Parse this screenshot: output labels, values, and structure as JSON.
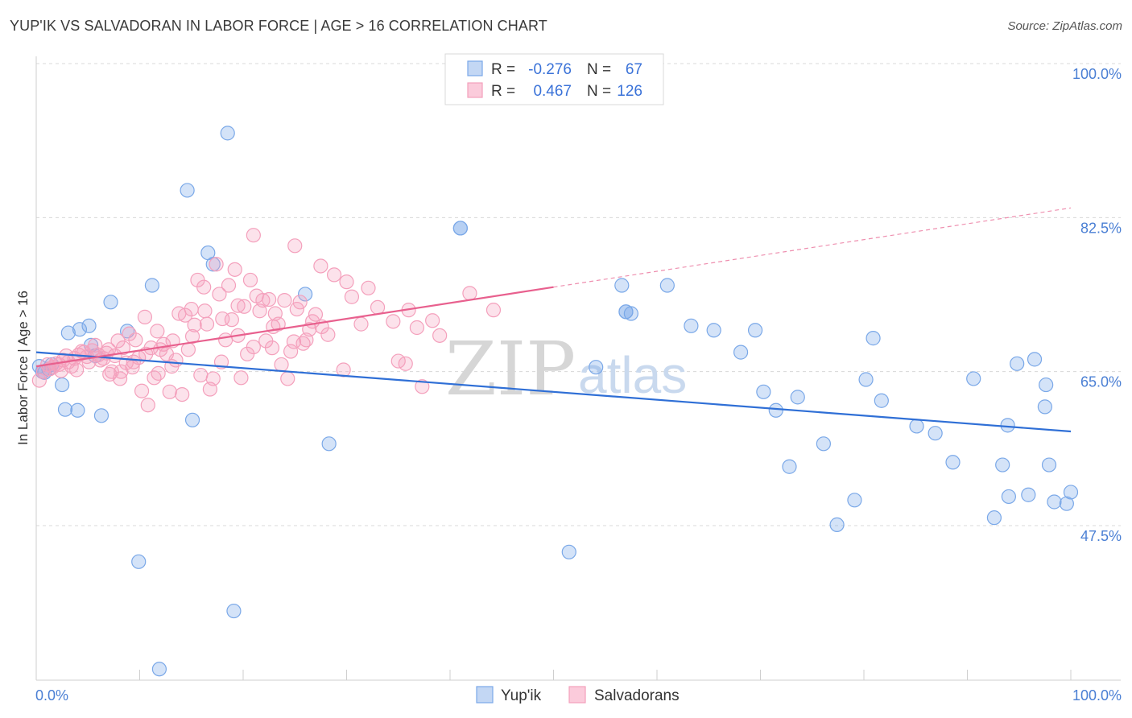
{
  "title": "YUP'IK VS SALVADORAN IN LABOR FORCE | AGE > 16 CORRELATION CHART",
  "source": "Source: ZipAtlas.com",
  "watermark": {
    "zip": "ZIP",
    "atlas": "atlas"
  },
  "chart_data": {
    "type": "scatter",
    "title": "YUP'IK VS SALVADORAN IN LABOR FORCE | AGE > 16 CORRELATION CHART",
    "xlabel": "",
    "ylabel": "In Labor Force | Age > 16",
    "xlim": [
      0,
      100
    ],
    "ylim": [
      31,
      102
    ],
    "x_tick_labels": [
      {
        "value": 0,
        "label": "0.0%"
      },
      {
        "value": 100,
        "label": "100.0%"
      }
    ],
    "y_ticks": [
      {
        "value": 100.0,
        "label": "100.0%"
      },
      {
        "value": 82.5,
        "label": "82.5%"
      },
      {
        "value": 65.0,
        "label": "65.0%"
      },
      {
        "value": 47.5,
        "label": "47.5%"
      }
    ],
    "grid": true,
    "legend_position": "top-center",
    "series": [
      {
        "name": "Yup'ik",
        "color": "#7aa8e8",
        "line_color": "#2f6fd6",
        "R": "-0.276",
        "N": "67",
        "trend": {
          "x0": 0,
          "y0": 67.2,
          "x1": 100,
          "y1": 58.2,
          "dashed_from": null
        },
        "points": [
          [
            0.3,
            65.6
          ],
          [
            0.6,
            65.0
          ],
          [
            0.8,
            64.9
          ],
          [
            1.2,
            65.3
          ],
          [
            1.5,
            65.8
          ],
          [
            2.5,
            63.5
          ],
          [
            2.8,
            60.7
          ],
          [
            3.1,
            69.4
          ],
          [
            4.0,
            60.6
          ],
          [
            4.2,
            69.8
          ],
          [
            5.1,
            70.2
          ],
          [
            5.3,
            68.0
          ],
          [
            5.7,
            66.8
          ],
          [
            6.3,
            60.0
          ],
          [
            7.2,
            72.9
          ],
          [
            8.8,
            69.6
          ],
          [
            9.9,
            43.4
          ],
          [
            11.2,
            74.8
          ],
          [
            11.9,
            31.2
          ],
          [
            14.6,
            85.6
          ],
          [
            15.1,
            59.5
          ],
          [
            16.6,
            78.5
          ],
          [
            17.1,
            77.2
          ],
          [
            18.5,
            92.1
          ],
          [
            19.1,
            37.8
          ],
          [
            26.0,
            73.8
          ],
          [
            28.3,
            56.8
          ],
          [
            41.0,
            81.3
          ],
          [
            51.5,
            44.5
          ],
          [
            54.1,
            65.5
          ],
          [
            56.6,
            74.8
          ],
          [
            57.0,
            71.8
          ],
          [
            57.5,
            71.6
          ],
          [
            61.0,
            74.8
          ],
          [
            63.3,
            70.2
          ],
          [
            65.5,
            69.7
          ],
          [
            68.1,
            67.2
          ],
          [
            69.5,
            69.7
          ],
          [
            70.3,
            62.7
          ],
          [
            71.5,
            60.6
          ],
          [
            72.8,
            54.2
          ],
          [
            73.6,
            62.1
          ],
          [
            76.1,
            56.8
          ],
          [
            77.4,
            47.6
          ],
          [
            79.1,
            50.4
          ],
          [
            80.2,
            64.1
          ],
          [
            80.9,
            68.8
          ],
          [
            81.7,
            61.7
          ],
          [
            85.1,
            58.8
          ],
          [
            86.9,
            58.0
          ],
          [
            88.6,
            54.7
          ],
          [
            90.6,
            64.2
          ],
          [
            92.6,
            48.4
          ],
          [
            93.4,
            54.4
          ],
          [
            93.9,
            58.9
          ],
          [
            94.0,
            50.8
          ],
          [
            94.8,
            65.9
          ],
          [
            95.9,
            51.0
          ],
          [
            96.5,
            66.4
          ],
          [
            97.5,
            61.0
          ],
          [
            97.6,
            63.5
          ],
          [
            97.9,
            54.4
          ],
          [
            98.4,
            50.2
          ],
          [
            99.6,
            50.0
          ],
          [
            100.0,
            51.3
          ],
          [
            41.0,
            81.3
          ],
          [
            57.0,
            71.8
          ]
        ]
      },
      {
        "name": "Salvadorans",
        "color": "#f4a0bc",
        "line_color": "#e8608e",
        "R": "0.467",
        "N": "126",
        "trend": {
          "x0": 0,
          "y0": 65.6,
          "x1": 100,
          "y1": 83.6,
          "dashed_from": 50
        },
        "points": [
          [
            0.3,
            64.0
          ],
          [
            0.7,
            65.0
          ],
          [
            1.1,
            65.8
          ],
          [
            1.3,
            65.3
          ],
          [
            1.6,
            65.5
          ],
          [
            1.9,
            65.9
          ],
          [
            2.2,
            65.8
          ],
          [
            2.4,
            65.1
          ],
          [
            2.6,
            66.3
          ],
          [
            2.9,
            66.8
          ],
          [
            3.1,
            66.1
          ],
          [
            3.4,
            65.6
          ],
          [
            3.7,
            66.5
          ],
          [
            3.9,
            65.2
          ],
          [
            4.1,
            66.9
          ],
          [
            4.4,
            67.3
          ],
          [
            4.6,
            67.2
          ],
          [
            4.9,
            66.7
          ],
          [
            5.1,
            66.1
          ],
          [
            5.4,
            67.4
          ],
          [
            5.7,
            68.0
          ],
          [
            6.0,
            66.9
          ],
          [
            6.2,
            66.3
          ],
          [
            6.5,
            66.5
          ],
          [
            6.8,
            67.1
          ],
          [
            7.0,
            67.5
          ],
          [
            7.3,
            65.0
          ],
          [
            7.6,
            66.8
          ],
          [
            7.9,
            68.5
          ],
          [
            8.1,
            64.2
          ],
          [
            8.4,
            67.7
          ],
          [
            8.7,
            66.0
          ],
          [
            9.0,
            69.3
          ],
          [
            9.3,
            65.5
          ],
          [
            9.6,
            68.6
          ],
          [
            9.9,
            66.6
          ],
          [
            10.2,
            62.8
          ],
          [
            10.5,
            71.2
          ],
          [
            10.8,
            61.2
          ],
          [
            11.1,
            67.7
          ],
          [
            11.4,
            64.3
          ],
          [
            11.7,
            69.6
          ],
          [
            12.0,
            67.5
          ],
          [
            12.3,
            68.1
          ],
          [
            12.6,
            67.0
          ],
          [
            12.9,
            62.7
          ],
          [
            13.2,
            68.5
          ],
          [
            13.5,
            66.3
          ],
          [
            13.8,
            71.6
          ],
          [
            14.1,
            62.4
          ],
          [
            14.4,
            71.4
          ],
          [
            14.7,
            67.5
          ],
          [
            15.0,
            72.1
          ],
          [
            15.3,
            70.3
          ],
          [
            15.6,
            75.4
          ],
          [
            15.9,
            64.6
          ],
          [
            16.2,
            74.6
          ],
          [
            16.5,
            70.4
          ],
          [
            16.8,
            63.0
          ],
          [
            17.1,
            64.2
          ],
          [
            17.4,
            77.2
          ],
          [
            17.7,
            73.8
          ],
          [
            18.0,
            71.0
          ],
          [
            18.3,
            68.6
          ],
          [
            18.6,
            74.8
          ],
          [
            18.9,
            70.9
          ],
          [
            19.2,
            76.6
          ],
          [
            19.5,
            72.5
          ],
          [
            19.8,
            64.3
          ],
          [
            20.1,
            72.4
          ],
          [
            20.4,
            67.0
          ],
          [
            20.7,
            75.4
          ],
          [
            21.0,
            67.8
          ],
          [
            21.3,
            73.6
          ],
          [
            21.6,
            71.9
          ],
          [
            21.9,
            73.1
          ],
          [
            22.2,
            68.5
          ],
          [
            22.5,
            73.2
          ],
          [
            22.8,
            67.7
          ],
          [
            23.1,
            71.6
          ],
          [
            23.4,
            70.4
          ],
          [
            23.7,
            65.8
          ],
          [
            24.0,
            73.1
          ],
          [
            24.3,
            64.2
          ],
          [
            24.6,
            67.3
          ],
          [
            24.9,
            68.4
          ],
          [
            25.2,
            72.1
          ],
          [
            25.5,
            72.9
          ],
          [
            25.8,
            68.2
          ],
          [
            26.1,
            68.6
          ],
          [
            26.4,
            69.8
          ],
          [
            26.7,
            70.7
          ],
          [
            27.0,
            71.5
          ],
          [
            27.6,
            70.1
          ],
          [
            28.2,
            69.2
          ],
          [
            28.8,
            76.0
          ],
          [
            29.7,
            65.2
          ],
          [
            30.5,
            73.5
          ],
          [
            31.4,
            70.4
          ],
          [
            32.1,
            74.5
          ],
          [
            33.0,
            72.3
          ],
          [
            35.0,
            66.2
          ],
          [
            36.0,
            72.0
          ],
          [
            37.3,
            63.3
          ],
          [
            38.3,
            70.8
          ],
          [
            39.0,
            69.1
          ],
          [
            41.9,
            73.9
          ],
          [
            44.2,
            72.0
          ],
          [
            35.7,
            65.9
          ],
          [
            25.0,
            79.3
          ],
          [
            27.5,
            77.0
          ],
          [
            21.0,
            80.5
          ],
          [
            30.0,
            75.2
          ],
          [
            34.5,
            70.7
          ],
          [
            36.8,
            70.0
          ],
          [
            22.9,
            70.1
          ],
          [
            19.5,
            69.1
          ],
          [
            17.9,
            66.1
          ],
          [
            16.3,
            71.9
          ],
          [
            15.1,
            69.0
          ],
          [
            13.1,
            65.6
          ],
          [
            11.8,
            64.8
          ],
          [
            10.6,
            67.0
          ],
          [
            9.4,
            66.1
          ],
          [
            8.2,
            65.0
          ],
          [
            7.1,
            64.7
          ]
        ]
      }
    ]
  },
  "legend": {
    "r_label": "R =",
    "n_label": "N =",
    "rows": [
      {
        "series": "Yup'ik",
        "R": "-0.276",
        "N": "67",
        "color": "#7aa8e8"
      },
      {
        "series": "Salvadorans",
        "R": "0.467",
        "N": "126",
        "color": "#f4a0bc"
      }
    ]
  },
  "bottom_legend": [
    "Yup'ik",
    "Salvadorans"
  ]
}
